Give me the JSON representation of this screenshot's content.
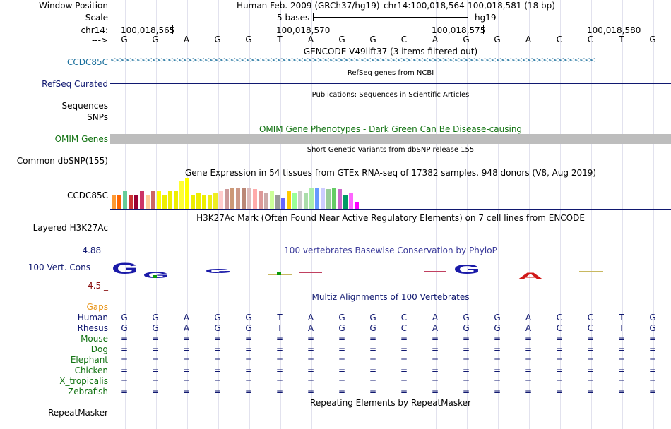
{
  "colors": {
    "accent_blue": "#1a6f9c",
    "navy": "#101870",
    "green": "#137313",
    "orange": "#e8961c",
    "gray_band": "#bdbdbd"
  },
  "ruler": {
    "labels": {
      "window_position": "Window Position",
      "scale": "Scale",
      "chrom": "chr14:",
      "arrow": "--->"
    },
    "assembly_text": "Human Feb. 2009 (GRCh37/hg19)",
    "position_text": "chr14:100,018,564-100,018,581 (18 bp)",
    "scale_text": "5 bases",
    "scale_db": "hg19",
    "ticks": [
      "100,018,565",
      "100,018,570",
      "100,018,575",
      "100,018,580"
    ],
    "bases": [
      "G",
      "G",
      "A",
      "G",
      "G",
      "T",
      "A",
      "G",
      "G",
      "C",
      "A",
      "G",
      "G",
      "A",
      "C",
      "C",
      "T",
      "G"
    ]
  },
  "tracks": {
    "gencode": {
      "title": "GENCODE V49lift37 (3 items filtered out)",
      "label": "CCDC85C",
      "strand_glyphs": "<<<<<<<<<<<<<<<<<<<<<<<<<<<<<<<<<<<<<<<<<<<<<<<<<<<<<<<<<<<<<<<<<<<<<<<<<<<<<<<<<<<<<<<<<<<<<"
    },
    "refseq": {
      "title": "RefSeq genes from NCBI",
      "label": "RefSeq Curated"
    },
    "publications": {
      "title": "Publications: Sequences in Scientific Articles",
      "label1": "Sequences",
      "label2": "SNPs"
    },
    "omim": {
      "title": "OMIM Gene Phenotypes - Dark Green Can Be Disease-causing",
      "label": "OMIM Genes"
    },
    "dbsnp": {
      "title": "Short Genetic Variants from dbSNP release 155",
      "label": "Common dbSNP(155)"
    },
    "gtex": {
      "title": "Gene Expression in 54 tissues from GTEx RNA-seq of 17382 samples, 948 donors (V8, Aug 2019)",
      "label": "CCDC85C"
    },
    "h3k27ac": {
      "title": "H3K27Ac Mark (Often Found Near Active Regulatory Elements) on 7 cell lines from ENCODE",
      "label": "Layered H3K27Ac"
    },
    "phylop": {
      "title": "100 vertebrates Basewise Conservation by PhyloP",
      "label": "100 Vert. Cons",
      "max_label": "4.88 _",
      "min_label": "-4.5 _"
    },
    "multiz": {
      "title": "Multiz Alignments of 100 Vertebrates",
      "gaps_label": "Gaps",
      "species": [
        {
          "name": "Human",
          "seq": [
            "G",
            "G",
            "A",
            "G",
            "G",
            "T",
            "A",
            "G",
            "G",
            "C",
            "A",
            "G",
            "G",
            "A",
            "C",
            "C",
            "T",
            "G"
          ]
        },
        {
          "name": "Rhesus",
          "seq": [
            "G",
            "G",
            "A",
            "G",
            "G",
            "T",
            "A",
            "G",
            "G",
            "C",
            "A",
            "G",
            "G",
            "A",
            "C",
            "C",
            "T",
            "G"
          ]
        },
        {
          "name": "Mouse",
          "seq": [
            "=",
            "=",
            "=",
            "=",
            "=",
            "=",
            "=",
            "=",
            "=",
            "=",
            "=",
            "=",
            "=",
            "=",
            "=",
            "=",
            "=",
            "="
          ]
        },
        {
          "name": "Dog",
          "seq": [
            "=",
            "=",
            "=",
            "=",
            "=",
            "=",
            "=",
            "=",
            "=",
            "=",
            "=",
            "=",
            "=",
            "=",
            "=",
            "=",
            "=",
            "="
          ]
        },
        {
          "name": "Elephant",
          "seq": [
            "=",
            "=",
            "=",
            "=",
            "=",
            "=",
            "=",
            "=",
            "=",
            "=",
            "=",
            "=",
            "=",
            "=",
            "=",
            "=",
            "=",
            "="
          ]
        },
        {
          "name": "Chicken",
          "seq": [
            "=",
            "=",
            "=",
            "=",
            "=",
            "=",
            "=",
            "=",
            "=",
            "=",
            "=",
            "=",
            "=",
            "=",
            "=",
            "=",
            "=",
            "="
          ]
        },
        {
          "name": "X_tropicalis",
          "seq": [
            "=",
            "=",
            "=",
            "=",
            "=",
            "=",
            "=",
            "=",
            "=",
            "=",
            "=",
            "=",
            "=",
            "=",
            "=",
            "=",
            "=",
            "="
          ]
        },
        {
          "name": "Zebrafish",
          "seq": [
            "=",
            "=",
            "=",
            "=",
            "=",
            "=",
            "=",
            "=",
            "=",
            "=",
            "=",
            "=",
            "=",
            "=",
            "=",
            "=",
            "=",
            "="
          ]
        }
      ]
    },
    "repeatmasker": {
      "title": "Repeating Elements by RepeatMasker",
      "label": "RepeatMasker"
    }
  }
}
